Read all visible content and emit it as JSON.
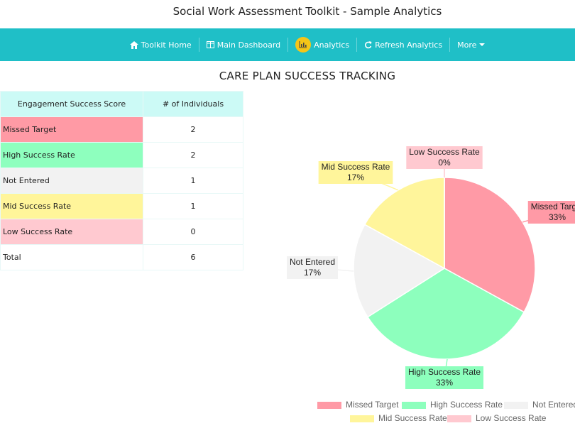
{
  "header": {
    "title": "Social Work Assessment Toolkit - Sample Analytics"
  },
  "nav": {
    "items": [
      "Toolkit Home",
      "Main Dashboard",
      "Analytics",
      "Refresh Analytics",
      "More"
    ]
  },
  "section": {
    "title": "CARE PLAN SUCCESS TRACKING"
  },
  "table": {
    "columns": [
      "Engagement Success Score",
      "# of Individuals"
    ],
    "rows": [
      {
        "label": "Missed Target",
        "count": 2,
        "color": "#ff9aa5"
      },
      {
        "label": "High Success Rate",
        "count": 2,
        "color": "#8effbe"
      },
      {
        "label": "Not Entered",
        "count": 1,
        "color": "#f2f2f2"
      },
      {
        "label": "Mid Success Rate",
        "count": 1,
        "color": "#fff59a"
      },
      {
        "label": "Low Success Rate",
        "count": 0,
        "color": "#ffc9d0"
      }
    ],
    "total": {
      "label": "Total",
      "count": 6
    }
  },
  "chart_data": {
    "type": "pie",
    "categories": [
      "Missed Target",
      "High Success Rate",
      "Not Entered",
      "Mid Success Rate",
      "Low Success Rate"
    ],
    "values": [
      33,
      33,
      17,
      17,
      0
    ],
    "value_labels": [
      "33%",
      "33%",
      "17%",
      "17%",
      "0%"
    ],
    "colors": [
      "#ff9aa6",
      "#8dffbd",
      "#f2f2f2",
      "#fff59b",
      "#ffc9d0"
    ]
  }
}
